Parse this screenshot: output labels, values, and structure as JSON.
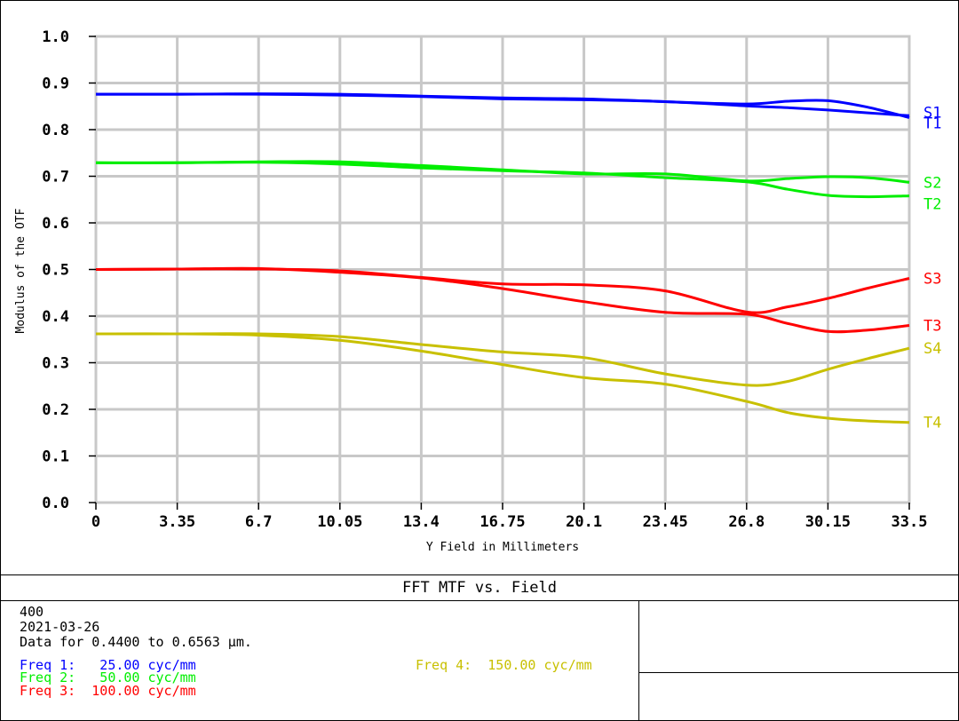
{
  "chart_data": {
    "type": "line",
    "title": "FFT MTF vs. Field",
    "xlabel": "Y Field in Millimeters",
    "ylabel": "Modulus of the OTF",
    "xlim": [
      0,
      33.5
    ],
    "ylim": [
      0,
      1.0
    ],
    "x_ticks": [
      "0",
      "3.35",
      "6.7",
      "10.05",
      "13.4",
      "16.75",
      "20.1",
      "23.45",
      "26.8",
      "30.15",
      "33.5"
    ],
    "y_ticks": [
      "0.0",
      "0.1",
      "0.2",
      "0.3",
      "0.4",
      "0.5",
      "0.6",
      "0.7",
      "0.8",
      "0.9",
      "1.0"
    ],
    "grid": true,
    "x": [
      0,
      3.35,
      6.7,
      10.05,
      13.4,
      16.75,
      20.1,
      23.45,
      26.8,
      28.5,
      30.15,
      31.8,
      33.5
    ],
    "series": [
      {
        "name": "S1",
        "color": "#0000ff",
        "values": [
          0.876,
          0.876,
          0.877,
          0.876,
          0.872,
          0.868,
          0.866,
          0.86,
          0.855,
          0.861,
          0.862,
          0.848,
          0.826
        ]
      },
      {
        "name": "T1",
        "color": "#0000ff",
        "values": [
          0.876,
          0.876,
          0.876,
          0.874,
          0.871,
          0.866,
          0.864,
          0.86,
          0.851,
          0.847,
          0.842,
          0.836,
          0.83
        ]
      },
      {
        "name": "S2",
        "color": "#00ee00",
        "values": [
          0.729,
          0.729,
          0.731,
          0.731,
          0.723,
          0.714,
          0.705,
          0.705,
          0.69,
          0.695,
          0.699,
          0.697,
          0.687
        ]
      },
      {
        "name": "T2",
        "color": "#00ee00",
        "values": [
          0.729,
          0.729,
          0.73,
          0.726,
          0.718,
          0.712,
          0.707,
          0.697,
          0.688,
          0.672,
          0.659,
          0.656,
          0.658
        ]
      },
      {
        "name": "S3",
        "color": "#ff0000",
        "values": [
          0.5,
          0.501,
          0.501,
          0.497,
          0.483,
          0.469,
          0.467,
          0.454,
          0.409,
          0.42,
          0.438,
          0.46,
          0.481
        ]
      },
      {
        "name": "T3",
        "color": "#ff0000",
        "values": [
          0.5,
          0.501,
          0.502,
          0.494,
          0.482,
          0.459,
          0.431,
          0.408,
          0.404,
          0.384,
          0.367,
          0.37,
          0.38
        ]
      },
      {
        "name": "S4",
        "color": "#c8c000",
        "values": [
          0.362,
          0.362,
          0.362,
          0.356,
          0.339,
          0.323,
          0.311,
          0.276,
          0.252,
          0.26,
          0.286,
          0.309,
          0.331
        ]
      },
      {
        "name": "T4",
        "color": "#c8c000",
        "values": [
          0.362,
          0.362,
          0.359,
          0.348,
          0.325,
          0.296,
          0.268,
          0.254,
          0.217,
          0.193,
          0.181,
          0.175,
          0.172
        ]
      }
    ]
  },
  "footer": {
    "title": "FFT MTF vs. Field",
    "line1": "400",
    "line2": "2021-03-26",
    "line3": "Data for 0.4400 to 0.6563 µm.",
    "freq1": "Freq 1:   25.00 cyc/mm",
    "freq2": "Freq 2:   50.00 cyc/mm",
    "freq3": "Freq 3:  100.00 cyc/mm",
    "freq4": "Freq 4:  150.00 cyc/mm",
    "freq1_color": "#0000ff",
    "freq2_color": "#00ee00",
    "freq3_color": "#ff0000",
    "freq4_color": "#c8c000"
  }
}
